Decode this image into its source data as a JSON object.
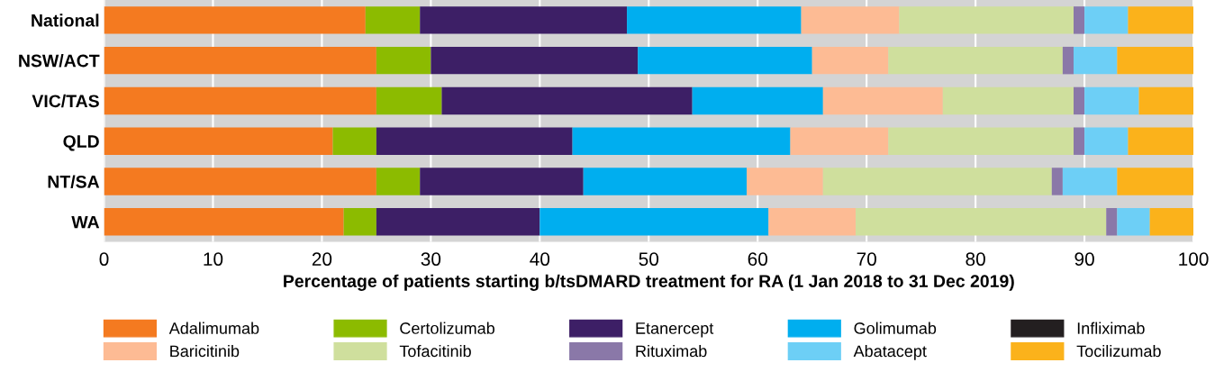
{
  "chart_data": {
    "type": "bar",
    "orientation": "horizontal",
    "stacked": true,
    "xlabel": "Percentage of patients starting b/tsDMARD treatment for RA (1 Jan 2018 to 31 Dec 2019)",
    "categories": [
      "National",
      "NSW/ACT",
      "VIC/TAS",
      "QLD",
      "NT/SA",
      "WA"
    ],
    "xlim": [
      0,
      100
    ],
    "xticks": [
      0,
      10,
      20,
      30,
      40,
      50,
      60,
      70,
      80,
      90,
      100
    ],
    "grid": "x",
    "legend": "bottom",
    "series": [
      {
        "name": "Adalimumab",
        "color": "#f47a20",
        "values": [
          24,
          25,
          25,
          21,
          25,
          22
        ]
      },
      {
        "name": "Certolizumab",
        "color": "#8cbb00",
        "values": [
          5,
          5,
          6,
          4,
          4,
          3
        ]
      },
      {
        "name": "Etanercept",
        "color": "#3d1f66",
        "values": [
          19,
          19,
          23,
          18,
          15,
          15
        ]
      },
      {
        "name": "Golimumab",
        "color": "#00aeef",
        "values": [
          16,
          16,
          12,
          20,
          15,
          21
        ]
      },
      {
        "name": "Infliximab",
        "color": "#231f20",
        "values": [
          0,
          0,
          0,
          0,
          0,
          0
        ]
      },
      {
        "name": "Baricitinib",
        "color": "#fdbb94",
        "values": [
          9,
          7,
          11,
          9,
          7,
          8
        ]
      },
      {
        "name": "Tofacitinib",
        "color": "#cfdf9d",
        "values": [
          16,
          16,
          12,
          17,
          21,
          23
        ]
      },
      {
        "name": "Rituximab",
        "color": "#8a78a8",
        "values": [
          1,
          1,
          1,
          1,
          1,
          1
        ]
      },
      {
        "name": "Abatacept",
        "color": "#6dcff6",
        "values": [
          4,
          4,
          5,
          4,
          5,
          3
        ]
      },
      {
        "name": "Tocilizumab",
        "color": "#fbb21b",
        "values": [
          6,
          7,
          5,
          6,
          7,
          4
        ]
      }
    ]
  }
}
